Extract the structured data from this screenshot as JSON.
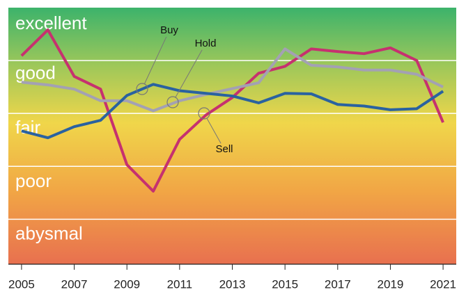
{
  "chart_data": {
    "type": "line",
    "x": [
      2005,
      2006,
      2007,
      2008,
      2009,
      2010,
      2011,
      2012,
      2013,
      2014,
      2015,
      2016,
      2017,
      2018,
      2019,
      2020,
      2021
    ],
    "series": [
      {
        "name": "Sell",
        "color": "#c6316f",
        "values": [
          4.09,
          4.58,
          3.7,
          3.46,
          2.03,
          1.53,
          2.51,
          2.97,
          3.3,
          3.76,
          3.89,
          4.22,
          4.17,
          4.13,
          4.24,
          4.0,
          2.83
        ]
      },
      {
        "name": "Hold",
        "color": "#a3a1b3",
        "values": [
          3.59,
          3.54,
          3.46,
          3.24,
          3.24,
          3.05,
          3.24,
          3.36,
          3.47,
          3.58,
          4.22,
          3.91,
          3.88,
          3.82,
          3.82,
          3.74,
          3.5
        ]
      },
      {
        "name": "Buy",
        "color": "#2a62a0",
        "values": [
          2.67,
          2.54,
          2.75,
          2.87,
          3.34,
          3.55,
          3.43,
          3.38,
          3.33,
          3.2,
          3.38,
          3.37,
          3.17,
          3.14,
          3.07,
          3.09,
          3.42
        ]
      }
    ],
    "xlim": [
      2004.5,
      2021.5
    ],
    "xticks": [
      2005,
      2007,
      2009,
      2011,
      2013,
      2015,
      2017,
      2019,
      2021
    ],
    "ylim": [
      0.15,
      5
    ],
    "yticks": [
      1,
      2,
      3,
      4
    ],
    "band_labels": [
      {
        "value": 4.68,
        "label": "excellent"
      },
      {
        "value": 3.74,
        "label": "good"
      },
      {
        "value": 2.71,
        "label": "fair"
      },
      {
        "value": 1.7,
        "label": "poor"
      },
      {
        "value": 0.71,
        "label": "abysmal"
      }
    ],
    "grid": true
  }
}
